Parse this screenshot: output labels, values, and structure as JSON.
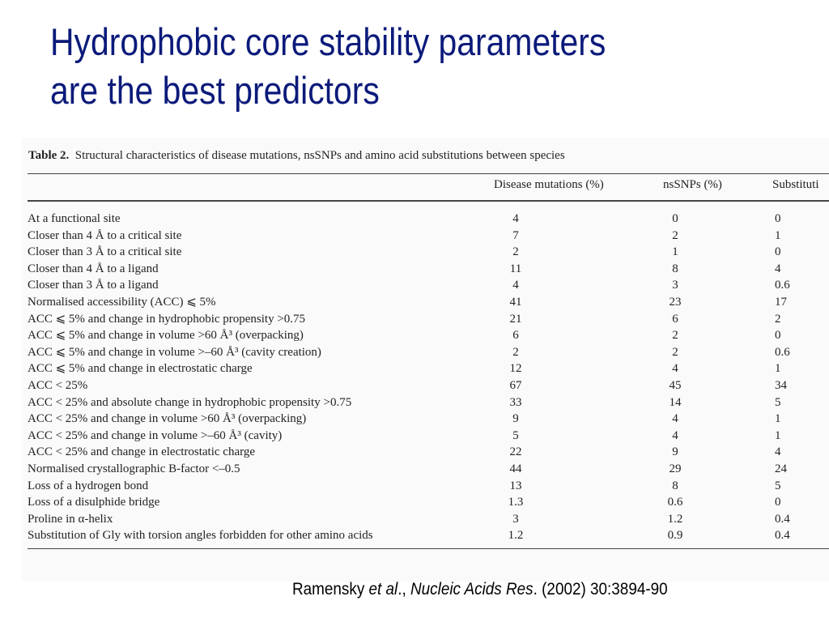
{
  "slide": {
    "title_line1": "Hydrophobic core stability parameters",
    "title_line2": "are the best predictors"
  },
  "table": {
    "caption_label": "Table 2.",
    "caption_text": "Structural characteristics of disease mutations, nsSNPs and amino acid substitutions between species",
    "headers": {
      "disease": "Disease mutations (%)",
      "nssnps": "nsSNPs (%)",
      "substitutions": "Substituti"
    },
    "rows": [
      {
        "label": "At a functional site",
        "disease": "4",
        "nssnps": "0",
        "subst": "0"
      },
      {
        "label": "Closer than 4 Å to a critical site",
        "disease": "7",
        "nssnps": "2",
        "subst": "1"
      },
      {
        "label": "Closer than 3 Å to a critical site",
        "disease": "2",
        "nssnps": "1",
        "subst": "0"
      },
      {
        "label": "Closer than 4 Å to a ligand",
        "disease": "11",
        "nssnps": "8",
        "subst": "4"
      },
      {
        "label": "Closer than 3 Å to a ligand",
        "disease": "4",
        "nssnps": "3",
        "subst": "0.6"
      },
      {
        "label": "Normalised accessibility (ACC) ⩽ 5%",
        "disease": "41",
        "nssnps": "23",
        "subst": "17"
      },
      {
        "label": "ACC ⩽ 5% and change in hydrophobic propensity >0.75",
        "disease": "21",
        "nssnps": "6",
        "subst": "2"
      },
      {
        "label": "ACC ⩽ 5% and change in volume >60 Å³ (overpacking)",
        "disease": "6",
        "nssnps": "2",
        "subst": "0"
      },
      {
        "label": "ACC ⩽ 5% and change in volume >–60 Å³ (cavity creation)",
        "disease": "2",
        "nssnps": "2",
        "subst": "0.6"
      },
      {
        "label": "ACC ⩽ 5% and change in electrostatic charge",
        "disease": "12",
        "nssnps": "4",
        "subst": "1"
      },
      {
        "label": "ACC < 25%",
        "disease": "67",
        "nssnps": "45",
        "subst": "34"
      },
      {
        "label": "ACC < 25% and absolute change in hydrophobic propensity >0.75",
        "disease": "33",
        "nssnps": "14",
        "subst": "5"
      },
      {
        "label": "ACC < 25% and change in volume >60 Å³ (overpacking)",
        "disease": "9",
        "nssnps": "4",
        "subst": "1"
      },
      {
        "label": "ACC < 25% and change in volume >–60 Å³ (cavity)",
        "disease": "5",
        "nssnps": "4",
        "subst": "1"
      },
      {
        "label": "ACC < 25% and change in electrostatic charge",
        "disease": "22",
        "nssnps": "9",
        "subst": "4"
      },
      {
        "label": "Normalised crystallographic B-factor <–0.5",
        "disease": "44",
        "nssnps": "29",
        "subst": "24"
      },
      {
        "label": "Loss of a hydrogen bond",
        "disease": "13",
        "nssnps": "8",
        "subst": "5"
      },
      {
        "label": "Loss of a disulphide bridge",
        "disease": "1.3",
        "nssnps": "0.6",
        "subst": "0"
      },
      {
        "label": "Proline in α-helix",
        "disease": "3",
        "nssnps": "1.2",
        "subst": "0.4"
      },
      {
        "label": "Substitution of Gly with torsion angles forbidden for other amino acids",
        "disease": "1.2",
        "nssnps": "0.9",
        "subst": "0.4"
      }
    ]
  },
  "citation": {
    "author": "Ramensky ",
    "etal": "et al",
    "sep": "., ",
    "journal": "Nucleic Acids Res",
    "rest": ". (2002) 30:3894-90"
  }
}
